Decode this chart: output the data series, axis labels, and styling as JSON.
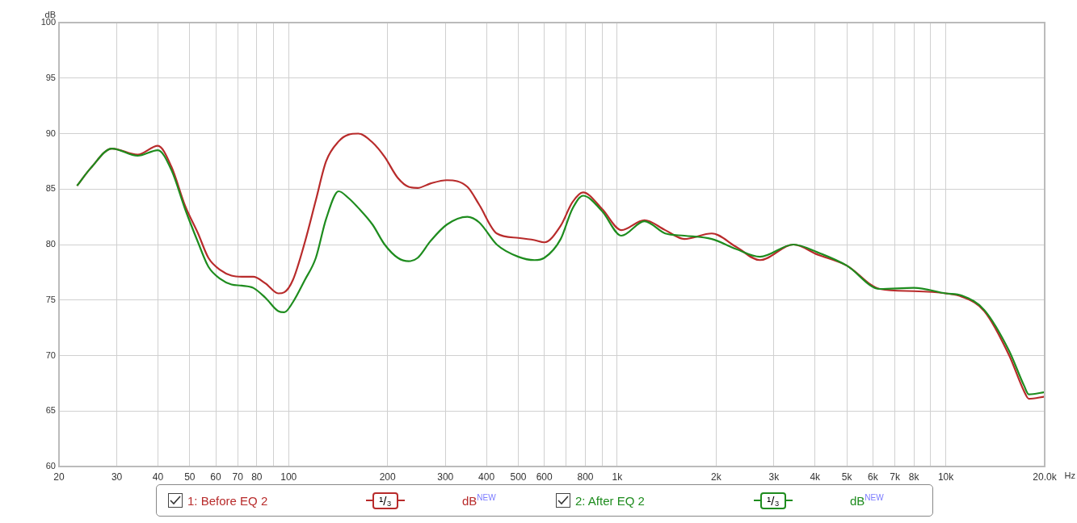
{
  "chart_data": {
    "type": "line",
    "xlabel": "Hz",
    "ylabel": "dB",
    "x": [
      22.7,
      25,
      29,
      34.7,
      40,
      44,
      48.4,
      53,
      57,
      62,
      67,
      72,
      78,
      85,
      93,
      97,
      103,
      112,
      121,
      130,
      142,
      152,
      163,
      180,
      196,
      215,
      232,
      247,
      270,
      303,
      350,
      380,
      430,
      500,
      560,
      600,
      673,
      730,
      787,
      900,
      1030,
      1210,
      1400,
      1600,
      1940,
      2300,
      2720,
      3440,
      4070,
      5000,
      6300,
      8000,
      10000,
      11200,
      13100,
      15600,
      17300,
      17900,
      20000
    ],
    "series": [
      {
        "name": "1: Before EQ 2",
        "color": "#b82b2b",
        "values": [
          85.3,
          86.9,
          88.65,
          88.1,
          88.9,
          87.0,
          83.5,
          81.0,
          78.8,
          77.7,
          77.2,
          77.1,
          77.1,
          76.5,
          75.6,
          75.7,
          76.8,
          80.2,
          84.0,
          87.5,
          89.3,
          89.9,
          90.0,
          89.2,
          87.9,
          86.0,
          85.2,
          85.1,
          85.5,
          85.8,
          85.2,
          83.6,
          81.0,
          80.6,
          80.4,
          80.2,
          81.7,
          83.8,
          84.7,
          83.2,
          81.3,
          82.2,
          81.3,
          80.5,
          81.0,
          79.8,
          78.6,
          80.0,
          79.1,
          78.1,
          76.0,
          75.8,
          75.6,
          75.3,
          74.0,
          70.0,
          66.8,
          66.1,
          66.3
        ]
      },
      {
        "name": "2: After EQ 2",
        "color": "#1e8c1e",
        "values": [
          85.3,
          86.9,
          88.65,
          88.0,
          88.5,
          86.7,
          83.2,
          80.2,
          78.0,
          76.9,
          76.4,
          76.3,
          76.1,
          75.2,
          74.0,
          73.9,
          74.8,
          76.8,
          78.8,
          82.3,
          84.8,
          84.2,
          83.3,
          81.8,
          80.0,
          78.8,
          78.5,
          78.8,
          80.3,
          81.8,
          82.5,
          82.0,
          80.0,
          78.9,
          78.6,
          78.8,
          80.5,
          83.2,
          84.4,
          83.0,
          80.8,
          82.1,
          81.0,
          80.8,
          80.5,
          79.6,
          78.9,
          80.0,
          79.3,
          78.1,
          76.0,
          76.1,
          75.6,
          75.4,
          74.1,
          70.4,
          67.3,
          66.5,
          66.7
        ]
      }
    ],
    "log": "x",
    "xlim": [
      20,
      20000
    ],
    "xticks": [
      20,
      30,
      40,
      50,
      60,
      70,
      80,
      {
        "value": 90,
        "label": null
      },
      100,
      200,
      300,
      400,
      500,
      600,
      {
        "value": 700,
        "label": null
      },
      800,
      {
        "value": 900,
        "label": null
      },
      {
        "value": 1000,
        "label": "1k"
      },
      {
        "value": 2000,
        "label": "2k"
      },
      {
        "value": 3000,
        "label": "3k"
      },
      {
        "value": 4000,
        "label": "4k"
      },
      {
        "value": 5000,
        "label": "5k"
      },
      {
        "value": 6000,
        "label": "6k"
      },
      {
        "value": 7000,
        "label": "7k"
      },
      {
        "value": 8000,
        "label": "8k"
      },
      {
        "value": 9000,
        "label": null
      },
      {
        "value": 10000,
        "label": "10k"
      },
      {
        "value": 20000,
        "label": "20.0k"
      }
    ],
    "ylim": [
      60,
      100
    ],
    "yticks": [
      60,
      65,
      70,
      75,
      80,
      85,
      90,
      95,
      100
    ],
    "grid": true,
    "legend": "bottom",
    "marker": "none",
    "line_style": "solid",
    "annotations": [
      "¹/₃",
      "dB$^{NEW}$",
      "¹/₃",
      "dB$^{NEW}$"
    ]
  }
}
